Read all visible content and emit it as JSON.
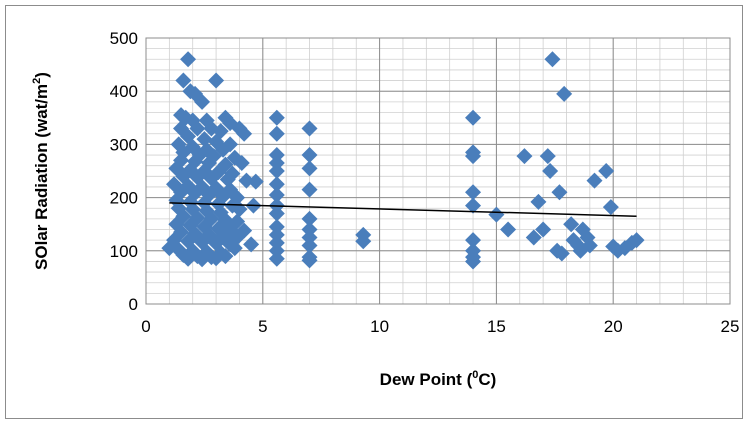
{
  "chart_data": {
    "type": "scatter",
    "title": "",
    "xlabel_parts": [
      "Dew Point (",
      "0",
      "C)"
    ],
    "ylabel_parts": [
      "SOlar Radiation (wat/m",
      "2",
      ")"
    ],
    "xlim": [
      0,
      25
    ],
    "ylim": [
      0,
      500
    ],
    "xticks": [
      0,
      5,
      10,
      15,
      20,
      25
    ],
    "yticks": [
      0,
      100,
      200,
      300,
      400,
      500
    ],
    "grid": true,
    "marker": "diamond",
    "marker_color": "#4a7ebb",
    "trendline": {
      "type": "linear",
      "x": [
        1,
        21
      ],
      "y": [
        190,
        165
      ],
      "color": "#000000"
    },
    "points": [
      [
        1.8,
        460
      ],
      [
        1.6,
        420
      ],
      [
        3.0,
        420
      ],
      [
        1.9,
        400
      ],
      [
        2.1,
        395
      ],
      [
        2.4,
        380
      ],
      [
        1.5,
        355
      ],
      [
        1.7,
        350
      ],
      [
        2.0,
        345
      ],
      [
        2.6,
        345
      ],
      [
        3.4,
        350
      ],
      [
        3.6,
        340
      ],
      [
        4.0,
        330
      ],
      [
        4.2,
        320
      ],
      [
        1.5,
        330
      ],
      [
        2.2,
        330
      ],
      [
        2.8,
        330
      ],
      [
        3.2,
        325
      ],
      [
        1.8,
        315
      ],
      [
        2.5,
        310
      ],
      [
        3.0,
        305
      ],
      [
        3.6,
        300
      ],
      [
        1.4,
        300
      ],
      [
        2.0,
        295
      ],
      [
        2.6,
        290
      ],
      [
        3.3,
        290
      ],
      [
        1.6,
        285
      ],
      [
        2.3,
        280
      ],
      [
        2.9,
        278
      ],
      [
        3.8,
        275
      ],
      [
        1.5,
        270
      ],
      [
        2.1,
        268
      ],
      [
        2.7,
        265
      ],
      [
        3.4,
        262
      ],
      [
        4.1,
        265
      ],
      [
        1.3,
        255
      ],
      [
        1.9,
        252
      ],
      [
        2.5,
        250
      ],
      [
        3.1,
        248
      ],
      [
        3.7,
        245
      ],
      [
        1.6,
        240
      ],
      [
        2.2,
        238
      ],
      [
        2.8,
        236
      ],
      [
        3.5,
        234
      ],
      [
        4.3,
        232
      ],
      [
        4.7,
        230
      ],
      [
        1.2,
        225
      ],
      [
        1.8,
        222
      ],
      [
        2.4,
        220
      ],
      [
        3.0,
        218
      ],
      [
        3.6,
        215
      ],
      [
        1.5,
        210
      ],
      [
        2.1,
        208
      ],
      [
        2.7,
        205
      ],
      [
        3.3,
        202
      ],
      [
        3.9,
        200
      ],
      [
        1.3,
        195
      ],
      [
        1.9,
        192
      ],
      [
        2.5,
        190
      ],
      [
        3.1,
        188
      ],
      [
        3.7,
        185
      ],
      [
        4.6,
        185
      ],
      [
        1.4,
        180
      ],
      [
        2.0,
        178
      ],
      [
        2.6,
        175
      ],
      [
        3.2,
        172
      ],
      [
        4.0,
        178
      ],
      [
        1.6,
        165
      ],
      [
        2.2,
        162
      ],
      [
        2.8,
        160
      ],
      [
        3.4,
        158
      ],
      [
        3.9,
        155
      ],
      [
        1.3,
        150
      ],
      [
        1.9,
        148
      ],
      [
        2.5,
        145
      ],
      [
        3.1,
        142
      ],
      [
        3.6,
        140
      ],
      [
        4.2,
        138
      ],
      [
        1.5,
        135
      ],
      [
        2.1,
        132
      ],
      [
        2.7,
        130
      ],
      [
        3.3,
        128
      ],
      [
        3.9,
        125
      ],
      [
        1.2,
        120
      ],
      [
        1.8,
        118
      ],
      [
        2.4,
        116
      ],
      [
        3.0,
        114
      ],
      [
        3.6,
        112
      ],
      [
        4.5,
        112
      ],
      [
        1.0,
        105
      ],
      [
        1.4,
        102
      ],
      [
        2.0,
        100
      ],
      [
        2.6,
        98
      ],
      [
        3.2,
        96
      ],
      [
        3.8,
        105
      ],
      [
        1.6,
        92
      ],
      [
        2.2,
        90
      ],
      [
        2.8,
        88
      ],
      [
        3.4,
        90
      ],
      [
        1.8,
        85
      ],
      [
        2.4,
        84
      ],
      [
        3.0,
        86
      ],
      [
        5.6,
        350
      ],
      [
        5.6,
        320
      ],
      [
        5.6,
        280
      ],
      [
        5.6,
        265
      ],
      [
        5.6,
        250
      ],
      [
        5.6,
        225
      ],
      [
        5.6,
        205
      ],
      [
        5.6,
        185
      ],
      [
        5.6,
        170
      ],
      [
        5.6,
        145
      ],
      [
        5.6,
        130
      ],
      [
        5.6,
        115
      ],
      [
        5.6,
        100
      ],
      [
        5.6,
        85
      ],
      [
        7.0,
        330
      ],
      [
        7.0,
        280
      ],
      [
        7.0,
        255
      ],
      [
        7.0,
        215
      ],
      [
        7.0,
        160
      ],
      [
        7.0,
        140
      ],
      [
        7.0,
        125
      ],
      [
        7.0,
        110
      ],
      [
        7.0,
        88
      ],
      [
        7.0,
        82
      ],
      [
        9.3,
        130
      ],
      [
        9.3,
        118
      ],
      [
        14.0,
        350
      ],
      [
        14.0,
        285
      ],
      [
        14.0,
        278
      ],
      [
        14.0,
        210
      ],
      [
        14.0,
        185
      ],
      [
        14.0,
        120
      ],
      [
        14.0,
        100
      ],
      [
        14.0,
        88
      ],
      [
        14.0,
        80
      ],
      [
        15.0,
        168
      ],
      [
        15.5,
        140
      ],
      [
        16.2,
        278
      ],
      [
        16.6,
        125
      ],
      [
        16.8,
        192
      ],
      [
        17.0,
        140
      ],
      [
        17.2,
        278
      ],
      [
        17.3,
        250
      ],
      [
        17.4,
        460
      ],
      [
        17.6,
        100
      ],
      [
        17.7,
        210
      ],
      [
        17.8,
        95
      ],
      [
        17.9,
        395
      ],
      [
        18.2,
        150
      ],
      [
        18.3,
        120
      ],
      [
        18.5,
        110
      ],
      [
        18.6,
        100
      ],
      [
        18.7,
        140
      ],
      [
        18.9,
        125
      ],
      [
        19.0,
        110
      ],
      [
        19.2,
        232
      ],
      [
        19.7,
        250
      ],
      [
        19.9,
        182
      ],
      [
        20.0,
        108
      ],
      [
        20.2,
        100
      ],
      [
        20.5,
        105
      ],
      [
        20.8,
        115
      ],
      [
        21.0,
        120
      ]
    ]
  }
}
